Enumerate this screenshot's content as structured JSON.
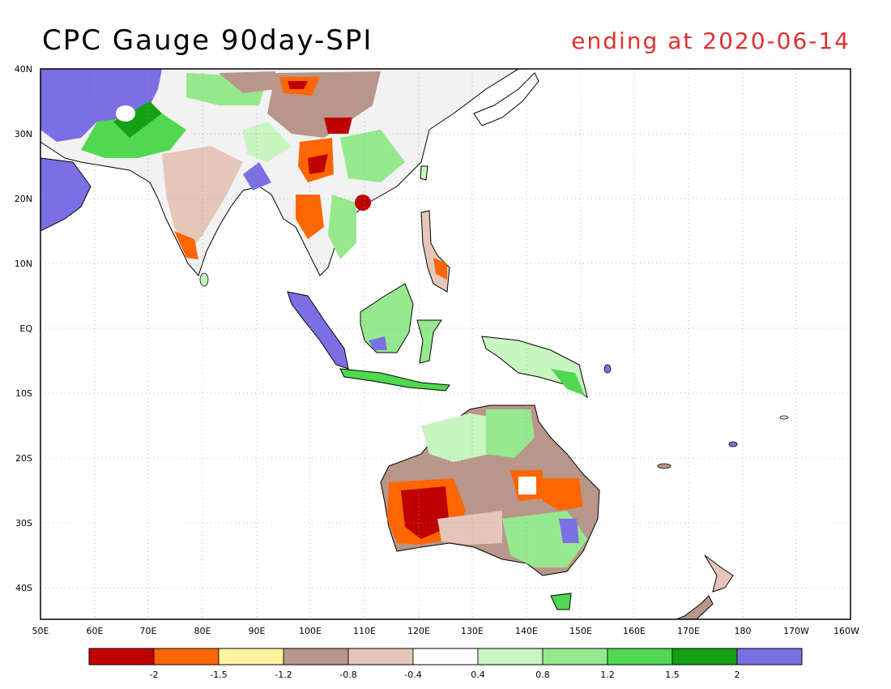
{
  "header": {
    "title": "CPC Gauge 90day-SPI",
    "subtitle": "ending at 2020-06-14",
    "subtitle_color": "#e03030"
  },
  "map": {
    "lat_labels": [
      "40N",
      "30N",
      "20N",
      "10N",
      "EQ",
      "10S",
      "20S",
      "30S",
      "40S"
    ],
    "lon_labels": [
      "50E",
      "60E",
      "70E",
      "80E",
      "90E",
      "100E",
      "110E",
      "120E",
      "130E",
      "140E",
      "150E",
      "160E",
      "170E",
      "180",
      "170W",
      "160W"
    ],
    "grid": "dotted",
    "extent": {
      "lon": [
        50,
        200
      ],
      "lat": [
        -45,
        40
      ]
    }
  },
  "legend": {
    "colors": [
      "#c00000",
      "#ff6600",
      "#fff3a0",
      "#b8968a",
      "#e6c6b8",
      "#ffffff",
      "#c8f5c0",
      "#96e88e",
      "#50d850",
      "#14a014",
      "#7b6fe6"
    ],
    "ticks": [
      "-2",
      "-1.5",
      "-1.2",
      "-0.8",
      "-0.4",
      "0.4",
      "0.8",
      "1.2",
      "1.5",
      "2"
    ]
  }
}
